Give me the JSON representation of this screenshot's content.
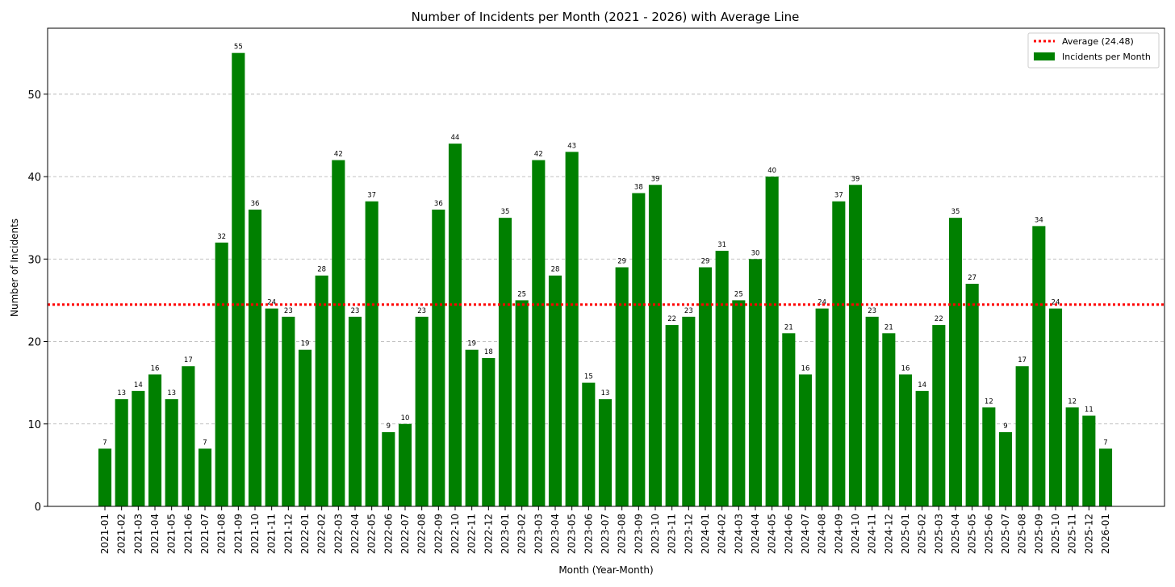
{
  "chart_data": {
    "type": "bar",
    "title": "Number of Incidents per Month (2021 - 2026) with Average Line",
    "xlabel": "Month (Year-Month)",
    "ylabel": "Number of Incidents",
    "ylim": [
      0,
      58
    ],
    "yticks": [
      0,
      10,
      20,
      30,
      40,
      50
    ],
    "grid": "y-dashed",
    "legend_position": "top-right",
    "categories": [
      "2021-01",
      "2021-02",
      "2021-03",
      "2021-04",
      "2021-05",
      "2021-06",
      "2021-07",
      "2021-08",
      "2021-09",
      "2021-10",
      "2021-11",
      "2021-12",
      "2022-01",
      "2022-02",
      "2022-03",
      "2022-04",
      "2022-05",
      "2022-06",
      "2022-07",
      "2022-08",
      "2022-09",
      "2022-10",
      "2022-11",
      "2022-12",
      "2023-01",
      "2023-02",
      "2023-03",
      "2023-04",
      "2023-05",
      "2023-06",
      "2023-07",
      "2023-08",
      "2023-09",
      "2023-10",
      "2023-11",
      "2023-12",
      "2024-01",
      "2024-02",
      "2024-03",
      "2024-04",
      "2024-05",
      "2024-06",
      "2024-07",
      "2024-08",
      "2024-09",
      "2024-10",
      "2024-11",
      "2024-12",
      "2025-01",
      "2025-02",
      "2025-03",
      "2025-04",
      "2025-05",
      "2025-06",
      "2025-07",
      "2025-08",
      "2025-09",
      "2025-10",
      "2025-11",
      "2025-12",
      "2026-01"
    ],
    "series": [
      {
        "name": "Incidents per Month",
        "color": "#008000",
        "values": [
          7,
          13,
          14,
          16,
          13,
          17,
          7,
          32,
          55,
          36,
          24,
          23,
          19,
          28,
          42,
          23,
          37,
          9,
          10,
          23,
          36,
          44,
          19,
          18,
          35,
          25,
          42,
          28,
          43,
          15,
          13,
          29,
          38,
          39,
          22,
          23,
          29,
          31,
          25,
          30,
          40,
          21,
          16,
          24,
          37,
          39,
          23,
          21,
          16,
          14,
          22,
          35,
          27,
          12,
          9,
          17,
          34,
          24,
          12,
          11,
          7
        ]
      }
    ],
    "average": {
      "name": "Average (24.48)",
      "value": 24.48,
      "color": "#ff0000",
      "style": "dotted"
    }
  }
}
